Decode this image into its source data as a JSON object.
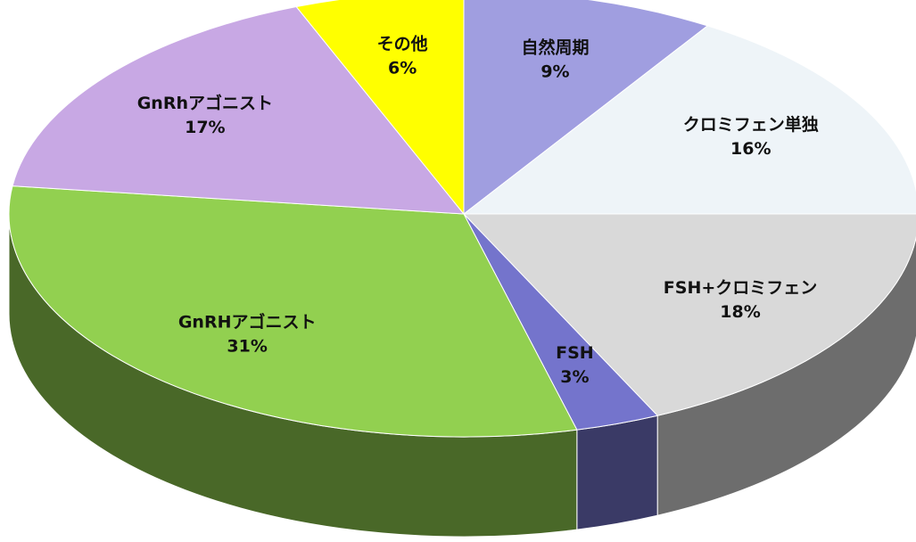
{
  "chart_data": {
    "type": "pie",
    "categories": [
      "自然周期",
      "クロミフェン単独",
      "FSH+クロミフェン",
      "FSH",
      "GnRHアゴニスト",
      "GnRhアゴニスト",
      "その他"
    ],
    "values": [
      9,
      16,
      18,
      3,
      31,
      17,
      6
    ],
    "value_labels": [
      "9%",
      "16%",
      "18%",
      "3%",
      "31%",
      "17%",
      "6%"
    ],
    "colors": [
      "#a09ee0",
      "#eef4f8",
      "#d9d9d9",
      "#7474cc",
      "#92d050",
      "#c8a8e4",
      "#ffff00"
    ]
  }
}
